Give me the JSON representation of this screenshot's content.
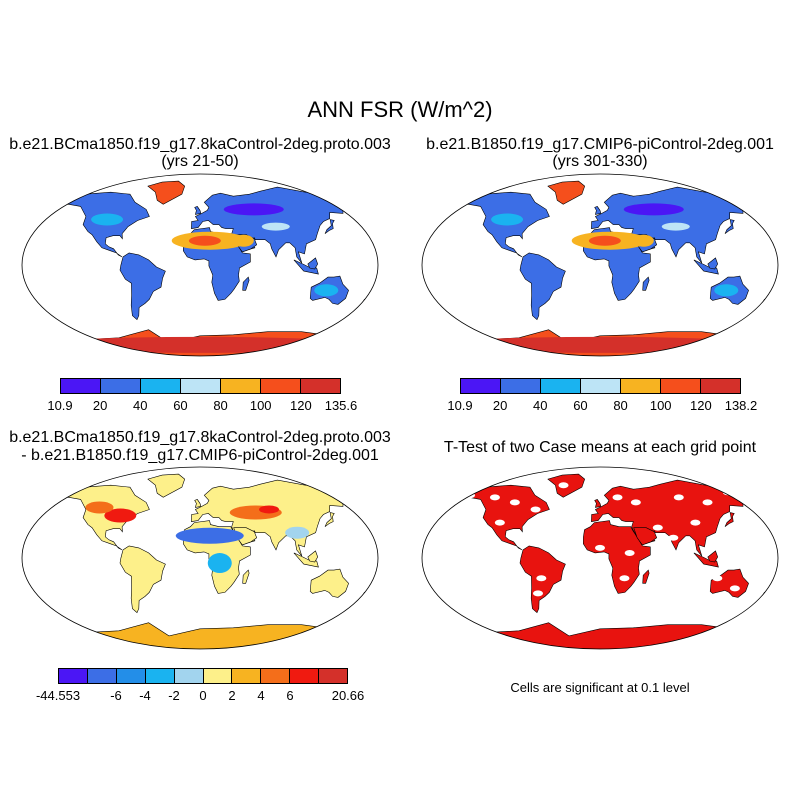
{
  "title": "ANN FSR (W/m^2)",
  "panels": {
    "case": {
      "title_line1": "b.e21.BCma1850.f19_g17.8kaControl-2deg.proto.003",
      "title_line2": "(yrs 21-50)",
      "colorbar_labels": [
        "10.9",
        "20",
        "40",
        "60",
        "80",
        "100",
        "120",
        "135.6"
      ],
      "colorbar_colors": [
        "#4b16f5",
        "#3c6ee6",
        "#1ab3f0",
        "#bde4f6",
        "#f7b321",
        "#f54f1c",
        "#d4302a"
      ]
    },
    "control": {
      "title_line1": "b.e21.B1850.f19_g17.CMIP6-piControl-2deg.001",
      "title_line2": "(yrs 301-330)",
      "colorbar_labels": [
        "10.9",
        "20",
        "40",
        "60",
        "80",
        "100",
        "120",
        "138.2"
      ],
      "colorbar_colors": [
        "#4b16f5",
        "#3c6ee6",
        "#1ab3f0",
        "#bde4f6",
        "#f7b321",
        "#f54f1c",
        "#d4302a"
      ]
    },
    "difference": {
      "title_line1": "b.e21.BCma1850.f19_g17.8kaControl-2deg.proto.003",
      "title_line2": "- b.e21.B1850.f19_g17.CMIP6-piControl-2deg.001",
      "colorbar_labels": [
        "-44.553",
        "-6",
        "-4",
        "-2",
        "0",
        "2",
        "4",
        "6",
        "20.66"
      ],
      "colorbar_colors": [
        "#4b16f5",
        "#3c6ee6",
        "#238ee8",
        "#1ab3f0",
        "#a2d4ee",
        "#fdf08a",
        "#f7b321",
        "#f46e1a",
        "#f01a10",
        "#d4302a"
      ]
    },
    "ttest": {
      "title": "T-Test of two Case means at each grid point",
      "note": "Cells are significant at 0.1 level",
      "color": "#e8130f"
    }
  },
  "colors": {
    "ocean": "#ffffff",
    "coast": "#000000"
  }
}
